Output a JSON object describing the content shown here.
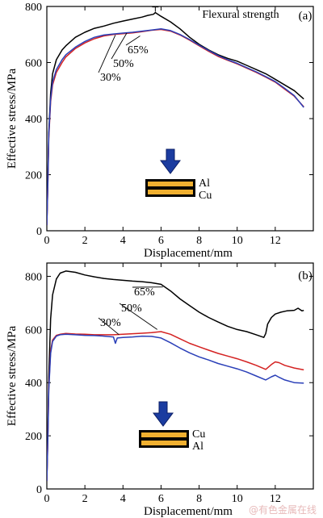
{
  "watermark": "@有色金属在线",
  "chart_data": [
    {
      "id": "a",
      "type": "line",
      "panel_label": "(a)",
      "title": "Flexural strength",
      "xlabel": "Displacement/mm",
      "ylabel": "Effective stress/MPa",
      "xlim": [
        0,
        14
      ],
      "ylim": [
        0,
        800
      ],
      "xticks": [
        0,
        2,
        4,
        6,
        8,
        10,
        12
      ],
      "yticks": [
        0,
        200,
        400,
        600,
        800
      ],
      "xtick_labels": [
        "0",
        "2",
        "4",
        "6",
        "8",
        "10",
        "12"
      ],
      "ytick_labels": [
        "0",
        "200",
        "400",
        "600",
        "800"
      ],
      "grid": false,
      "legend": "none",
      "plate_labels": {
        "top": "Al",
        "bottom": "Cu"
      },
      "series": [
        {
          "name": "65%",
          "color": "#000000",
          "x": [
            0.0,
            0.05,
            0.1,
            0.2,
            0.3,
            0.5,
            0.8,
            1.0,
            1.5,
            2.0,
            2.5,
            3.0,
            3.5,
            4.0,
            4.5,
            5.0,
            5.3,
            5.6,
            5.7,
            6.0,
            6.5,
            7.0,
            7.5,
            8.0,
            8.5,
            9.0,
            9.5,
            10.0,
            10.5,
            11.0,
            11.5,
            12.0,
            12.5,
            13.0,
            13.5
          ],
          "y": [
            20,
            170,
            350,
            490,
            560,
            610,
            645,
            660,
            690,
            708,
            722,
            730,
            740,
            748,
            755,
            762,
            768,
            772,
            778,
            765,
            745,
            720,
            690,
            665,
            645,
            628,
            615,
            605,
            590,
            575,
            560,
            540,
            520,
            500,
            470
          ]
        },
        {
          "name": "50%",
          "color": "#d42222",
          "x": [
            0.0,
            0.05,
            0.1,
            0.2,
            0.3,
            0.5,
            0.8,
            1.0,
            1.5,
            2.0,
            2.5,
            3.0,
            3.5,
            4.0,
            4.5,
            5.0,
            5.5,
            6.0,
            6.5,
            7.0,
            7.5,
            8.0,
            8.5,
            9.0,
            9.5,
            10.0,
            10.5,
            11.0,
            11.5,
            12.0,
            12.5,
            13.0,
            13.5
          ],
          "y": [
            20,
            150,
            330,
            460,
            520,
            565,
            600,
            620,
            650,
            670,
            685,
            695,
            700,
            703,
            706,
            710,
            715,
            718,
            712,
            698,
            680,
            660,
            640,
            622,
            608,
            595,
            580,
            565,
            548,
            530,
            505,
            480,
            442
          ]
        },
        {
          "name": "30%",
          "color": "#2a3fb8",
          "x": [
            0.0,
            0.05,
            0.1,
            0.2,
            0.3,
            0.5,
            0.8,
            1.0,
            1.5,
            2.0,
            2.5,
            3.0,
            3.5,
            4.0,
            4.5,
            5.0,
            5.5,
            6.0,
            6.5,
            7.0,
            7.5,
            8.0,
            8.5,
            9.0,
            9.5,
            10.0,
            10.5,
            11.0,
            11.5,
            12.0,
            12.5,
            13.0,
            13.5
          ],
          "y": [
            20,
            160,
            340,
            470,
            530,
            575,
            610,
            628,
            655,
            675,
            690,
            698,
            702,
            705,
            708,
            712,
            716,
            720,
            714,
            700,
            682,
            662,
            643,
            625,
            610,
            597,
            582,
            567,
            550,
            532,
            508,
            482,
            440
          ]
        }
      ]
    },
    {
      "id": "b",
      "type": "line",
      "panel_label": "(b)",
      "title": "",
      "xlabel": "Displacement/mm",
      "ylabel": "Effective stress/MPa",
      "xlim": [
        0,
        14
      ],
      "ylim": [
        0,
        850
      ],
      "xticks": [
        0,
        2,
        4,
        6,
        8,
        10,
        12
      ],
      "yticks": [
        0,
        200,
        400,
        600,
        800
      ],
      "xtick_labels": [
        "0",
        "2",
        "4",
        "6",
        "8",
        "10",
        "12"
      ],
      "ytick_labels": [
        "0",
        "200",
        "400",
        "600",
        "800"
      ],
      "grid": false,
      "legend": "none",
      "plate_labels": {
        "top": "Cu",
        "bottom": "Al"
      },
      "series": [
        {
          "name": "65%",
          "color": "#000000",
          "x": [
            0.0,
            0.05,
            0.1,
            0.2,
            0.3,
            0.5,
            0.7,
            1.0,
            1.5,
            2.0,
            2.5,
            3.0,
            3.5,
            4.0,
            4.5,
            5.0,
            5.5,
            6.0,
            6.5,
            7.0,
            7.5,
            8.0,
            8.5,
            9.0,
            9.5,
            10.0,
            10.5,
            11.0,
            11.4,
            11.5,
            11.6,
            11.8,
            12.0,
            12.3,
            12.6,
            13.0,
            13.2,
            13.4,
            13.5
          ],
          "y": [
            30,
            200,
            420,
            640,
            730,
            790,
            812,
            820,
            815,
            805,
            798,
            792,
            788,
            785,
            782,
            780,
            776,
            770,
            745,
            715,
            690,
            665,
            645,
            628,
            612,
            600,
            592,
            580,
            570,
            585,
            620,
            645,
            658,
            665,
            670,
            672,
            680,
            670,
            672
          ]
        },
        {
          "name": "50%",
          "color": "#d42222",
          "x": [
            0.0,
            0.05,
            0.1,
            0.2,
            0.3,
            0.5,
            0.7,
            1.0,
            1.5,
            2.0,
            2.5,
            3.0,
            3.5,
            4.0,
            4.5,
            5.0,
            5.5,
            6.0,
            6.5,
            7.0,
            7.5,
            8.0,
            8.5,
            9.0,
            9.5,
            10.0,
            10.5,
            11.0,
            11.5,
            11.8,
            12.0,
            12.2,
            12.5,
            13.0,
            13.5
          ],
          "y": [
            30,
            180,
            380,
            520,
            560,
            578,
            582,
            585,
            583,
            582,
            580,
            580,
            580,
            582,
            584,
            586,
            588,
            592,
            582,
            565,
            548,
            535,
            522,
            510,
            500,
            490,
            478,
            465,
            450,
            468,
            478,
            475,
            465,
            455,
            448
          ]
        },
        {
          "name": "30%",
          "color": "#2a3fb8",
          "x": [
            0.0,
            0.05,
            0.1,
            0.2,
            0.3,
            0.5,
            0.7,
            1.0,
            1.5,
            2.0,
            2.5,
            3.0,
            3.5,
            3.6,
            3.7,
            4.0,
            4.5,
            5.0,
            5.5,
            6.0,
            6.5,
            7.0,
            7.5,
            8.0,
            8.5,
            9.0,
            9.5,
            10.0,
            10.5,
            11.0,
            11.5,
            11.8,
            12.0,
            12.2,
            12.5,
            13.0,
            13.5
          ],
          "y": [
            30,
            175,
            370,
            510,
            555,
            575,
            580,
            582,
            580,
            578,
            577,
            575,
            572,
            548,
            568,
            570,
            572,
            575,
            574,
            568,
            550,
            530,
            512,
            497,
            485,
            472,
            462,
            452,
            440,
            425,
            410,
            422,
            428,
            420,
            410,
            400,
            398
          ]
        }
      ]
    }
  ]
}
